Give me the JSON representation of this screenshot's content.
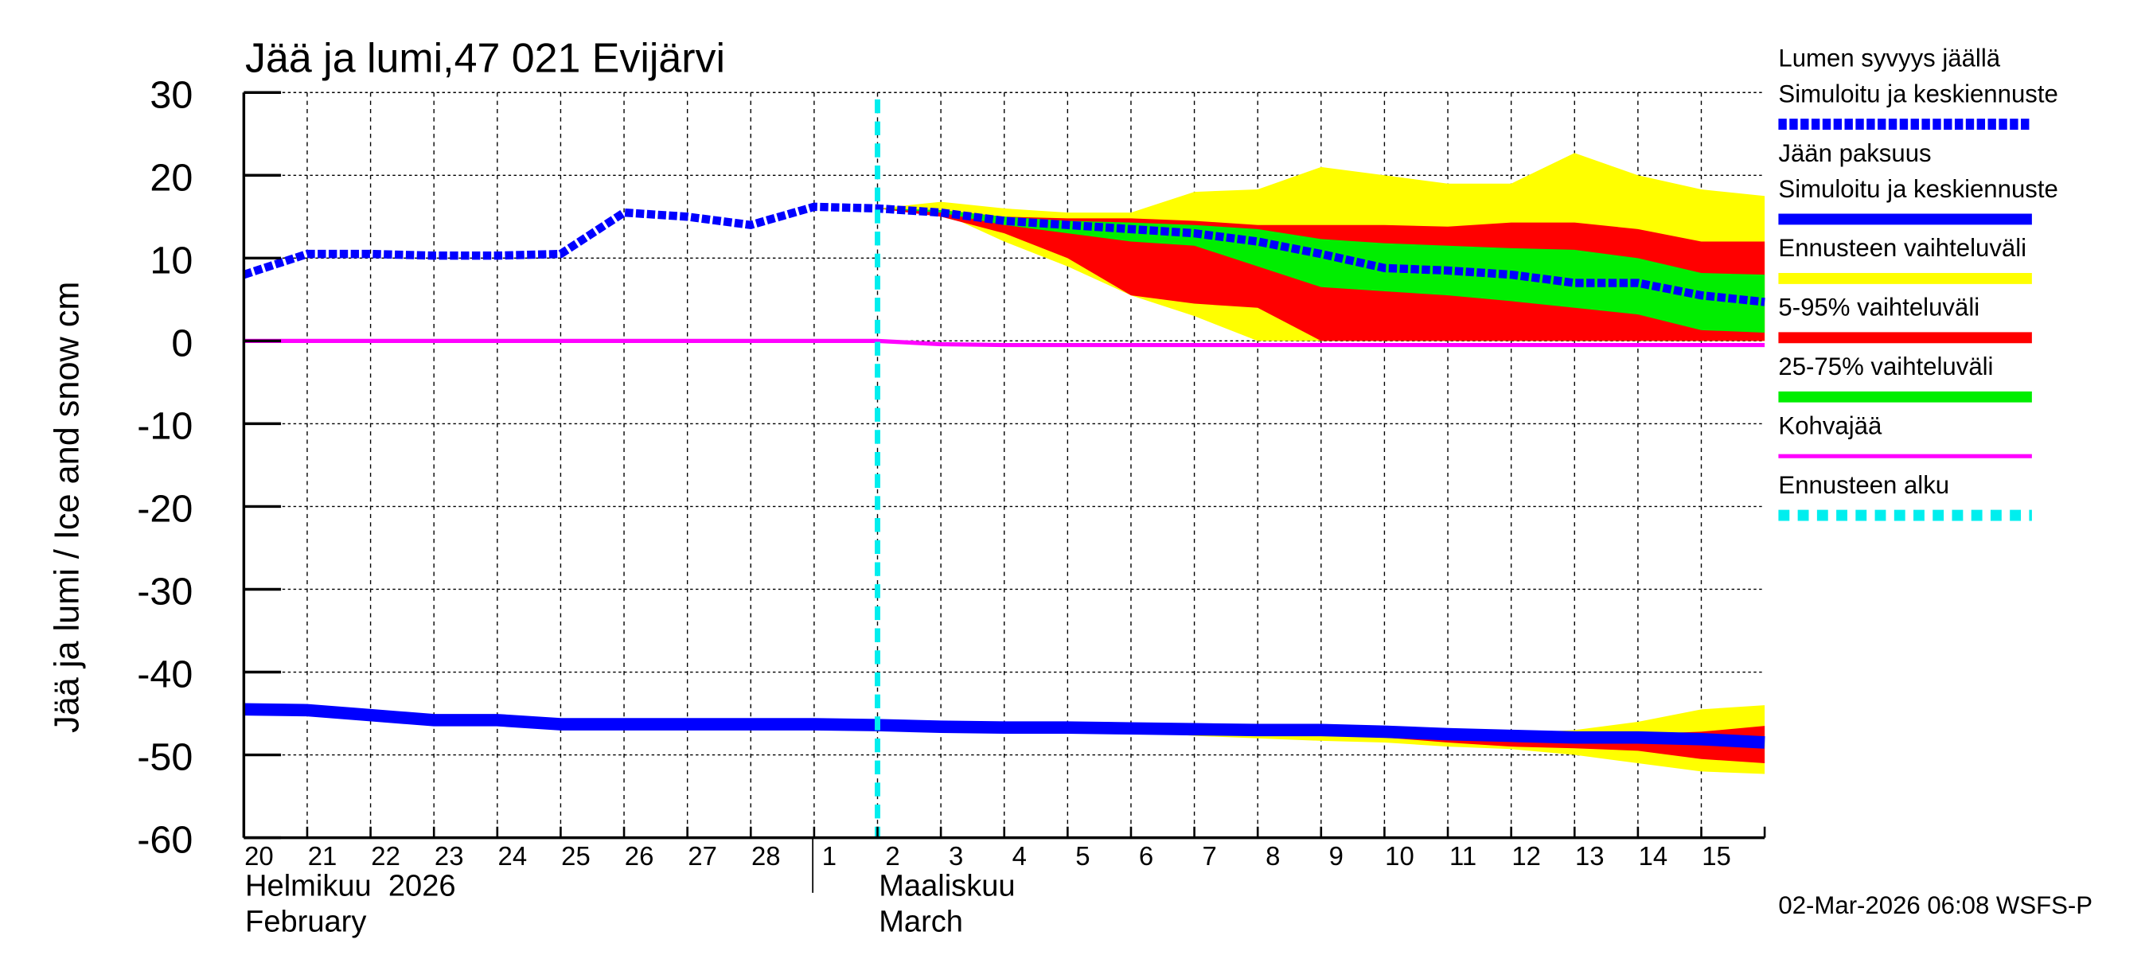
{
  "chart_data": {
    "type": "area",
    "title": "Jää ja lumi,47 021 Evijärvi",
    "ylabel": "Jää ja lumi / Ice and snow    cm",
    "ylim": [
      -60,
      30
    ],
    "yticks": [
      30,
      20,
      10,
      0,
      -10,
      -20,
      -30,
      -40,
      -50,
      -60
    ],
    "grid": true,
    "legend_position": "right",
    "x": [
      "2026-02-20",
      "2026-02-21",
      "2026-02-22",
      "2026-02-23",
      "2026-02-24",
      "2026-02-25",
      "2026-02-26",
      "2026-02-27",
      "2026-02-28",
      "2026-03-01",
      "2026-03-02",
      "2026-03-03",
      "2026-03-04",
      "2026-03-05",
      "2026-03-06",
      "2026-03-07",
      "2026-03-08",
      "2026-03-09",
      "2026-03-10",
      "2026-03-11",
      "2026-03-12",
      "2026-03-13",
      "2026-03-14",
      "2026-03-15",
      "2026-03-16"
    ],
    "xtick_labels": [
      "20",
      "21",
      "22",
      "23",
      "24",
      "25",
      "26",
      "27",
      "28",
      "1",
      "2",
      "3",
      "4",
      "5",
      "6",
      "7",
      "8",
      "9",
      "10",
      "11",
      "12",
      "13",
      "14",
      "15"
    ],
    "month_labels": [
      {
        "fi": "Helmikuu  2026",
        "en": "February"
      },
      {
        "fi": "Maaliskuu",
        "en": "March"
      }
    ],
    "forecast_start": "2026-03-02",
    "series": [
      {
        "name": "Lumen syvyys jäällä Simuloitu ja keskiennuste",
        "color": "#0000ff",
        "style": "dashed",
        "values": [
          8,
          10.5,
          10.5,
          10.3,
          10.3,
          10.5,
          15.5,
          15,
          14,
          16.2,
          16,
          15.5,
          14.5,
          14,
          13.5,
          13,
          12,
          10.5,
          8.8,
          8.5,
          8,
          7,
          7,
          5.5,
          4.7
        ]
      },
      {
        "name": "Jään paksuus Simuloitu ja keskiennuste",
        "color": "#0000ff",
        "style": "solid",
        "values": [
          -44.5,
          -44.6,
          -45.2,
          -45.8,
          -45.8,
          -46.3,
          -46.3,
          -46.3,
          -46.3,
          -46.3,
          -46.4,
          -46.6,
          -46.7,
          -46.7,
          -46.8,
          -46.9,
          -47,
          -47,
          -47.2,
          -47.5,
          -47.7,
          -47.9,
          -47.9,
          -48.1,
          -48.5
        ]
      },
      {
        "name": "Kohvajää",
        "color": "#ff00ff",
        "style": "solid",
        "values": [
          0,
          0,
          0,
          0,
          0,
          0,
          0,
          0,
          0,
          0,
          0,
          -0.4,
          -0.5,
          -0.5,
          -0.5,
          -0.5,
          -0.5,
          -0.5,
          -0.5,
          -0.5,
          -0.5,
          -0.5,
          -0.5,
          -0.5,
          -0.5
        ]
      }
    ],
    "bands_start_index": 10,
    "bands": [
      {
        "name": "Ennusteen vaihteluväli",
        "color": "#ffff00",
        "target": "snow",
        "upper": [
          16,
          16.8,
          16,
          15.5,
          15.5,
          18,
          18.3,
          21,
          20,
          19,
          19,
          22.7,
          20,
          18.3,
          17.5
        ],
        "lower": [
          16,
          15.5,
          12,
          9,
          5.5,
          3,
          0,
          0,
          0,
          0,
          0,
          0,
          0,
          0,
          0
        ]
      },
      {
        "name": "5-95% vaihteluväli",
        "color": "#ff0000",
        "target": "snow",
        "upper": [
          16,
          15.8,
          15,
          14.8,
          14.8,
          14.5,
          14,
          14,
          14,
          13.8,
          14.3,
          14.3,
          13.5,
          12,
          12
        ],
        "lower": [
          16,
          15,
          13,
          10,
          5.5,
          4.5,
          4,
          0,
          0,
          0,
          0,
          0,
          0,
          0,
          0
        ]
      },
      {
        "name": "25-75% vaihteluväli",
        "color": "#00ee00",
        "target": "snow",
        "upper": [
          16,
          15.8,
          15,
          14.5,
          14.3,
          14,
          13.5,
          12.3,
          11.8,
          11.5,
          11.2,
          11,
          10,
          8.2,
          8
        ],
        "lower": [
          16,
          15.5,
          14,
          13,
          12,
          11.5,
          9,
          6.5,
          6,
          5.5,
          4.8,
          4,
          3.2,
          1.3,
          1
        ]
      },
      {
        "name": "Ennusteen vaihteluväli",
        "color": "#ffff00",
        "target": "ice",
        "upper": [
          -46.4,
          -46.6,
          -46.7,
          -46.7,
          -46.8,
          -46.9,
          -47,
          -47,
          -47,
          -47.2,
          -47.4,
          -47,
          -46,
          -44.5,
          -44
        ],
        "lower": [
          -46.4,
          -46.6,
          -46.7,
          -46.7,
          -47.2,
          -47.7,
          -48,
          -48.3,
          -48.5,
          -49,
          -49.3,
          -50,
          -51,
          -52,
          -52.3
        ]
      },
      {
        "name": "5-95% vaihteluväli",
        "color": "#ff0000",
        "target": "ice",
        "upper": [
          -46.4,
          -46.6,
          -46.7,
          -46.7,
          -46.8,
          -46.9,
          -47,
          -47,
          -47,
          -47.3,
          -47.6,
          -47.6,
          -47.5,
          -47.2,
          -46.5
        ],
        "lower": [
          -46.4,
          -46.6,
          -46.7,
          -46.7,
          -47,
          -47.3,
          -47.5,
          -47.6,
          -47.9,
          -48.5,
          -49,
          -49.2,
          -49.5,
          -50.5,
          -51
        ]
      },
      {
        "name": "25-75% vaihteluväli",
        "color": "#00ee00",
        "target": "ice",
        "upper": [
          -46.4,
          -46.6,
          -46.7,
          -46.7,
          -46.8,
          -46.9,
          -47,
          -47,
          -47.1,
          -47.4,
          -47.6,
          -47.8,
          -47.8,
          -48,
          -48.2
        ],
        "lower": [
          -46.4,
          -46.6,
          -46.7,
          -46.7,
          -46.8,
          -47,
          -47.1,
          -47.2,
          -47.4,
          -47.7,
          -48,
          -48.2,
          -48.3,
          -48.6,
          -49
        ]
      }
    ]
  },
  "legend": [
    {
      "line1": "Lumen syvyys jäällä",
      "line2": "Simuloitu ja keskiennuste",
      "color": "#0000ff",
      "style": "dashed"
    },
    {
      "line1": "Jään paksuus",
      "line2": "Simuloitu ja keskiennuste",
      "color": "#0000ff",
      "style": "solid"
    },
    {
      "line1": "Ennusteen vaihteluväli",
      "color": "#ffff00",
      "style": "solid"
    },
    {
      "line1": "5-95% vaihteluväli",
      "color": "#ff0000",
      "style": "solid"
    },
    {
      "line1": "25-75% vaihteluväli",
      "color": "#00ee00",
      "style": "solid"
    },
    {
      "line1": "Kohvajää",
      "color": "#ff00ff",
      "style": "thin"
    },
    {
      "line1": "Ennusteen alku",
      "color": "#00eeee",
      "style": "dashed"
    }
  ],
  "timestamp": "02-Mar-2026 06:08 WSFS-P"
}
